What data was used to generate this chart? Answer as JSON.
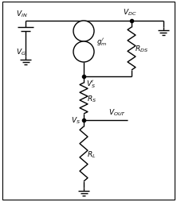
{
  "bg_color": "#ffffff",
  "border_color": "#000000",
  "line_color": "#000000",
  "line_width": 1.0,
  "font_size": 6.5,
  "fig_width": 2.22,
  "fig_height": 2.55,
  "dpi": 100
}
